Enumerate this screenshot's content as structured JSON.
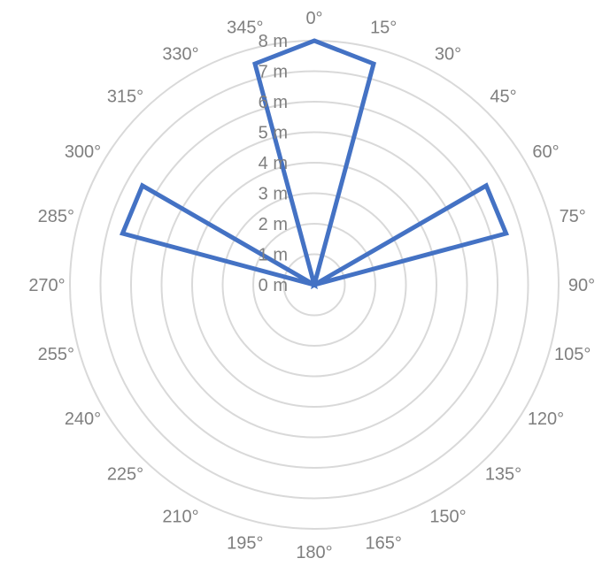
{
  "chart_data": {
    "type": "radar",
    "categories": [
      "0°",
      "15°",
      "30°",
      "45°",
      "60°",
      "75°",
      "90°",
      "105°",
      "120°",
      "135°",
      "150°",
      "165°",
      "180°",
      "195°",
      "210°",
      "225°",
      "240°",
      "255°",
      "270°",
      "285°",
      "300°",
      "315°",
      "330°",
      "345°"
    ],
    "series": [
      {
        "values": [
          8,
          7.5,
          0,
          0,
          6.5,
          6.5,
          0,
          0,
          0,
          0,
          0,
          0,
          0,
          0,
          0,
          0,
          0,
          0,
          0,
          6.5,
          6.5,
          0,
          0,
          7.5
        ],
        "color": "#4472c4"
      }
    ],
    "radial_ticks": [
      "0 m",
      "1 m",
      "2 m",
      "3 m",
      "4 m",
      "5 m",
      "6 m",
      "7 m",
      "8 m"
    ],
    "rlim": [
      0,
      8
    ],
    "grid": true,
    "grid_shape": "circular",
    "title": ""
  }
}
